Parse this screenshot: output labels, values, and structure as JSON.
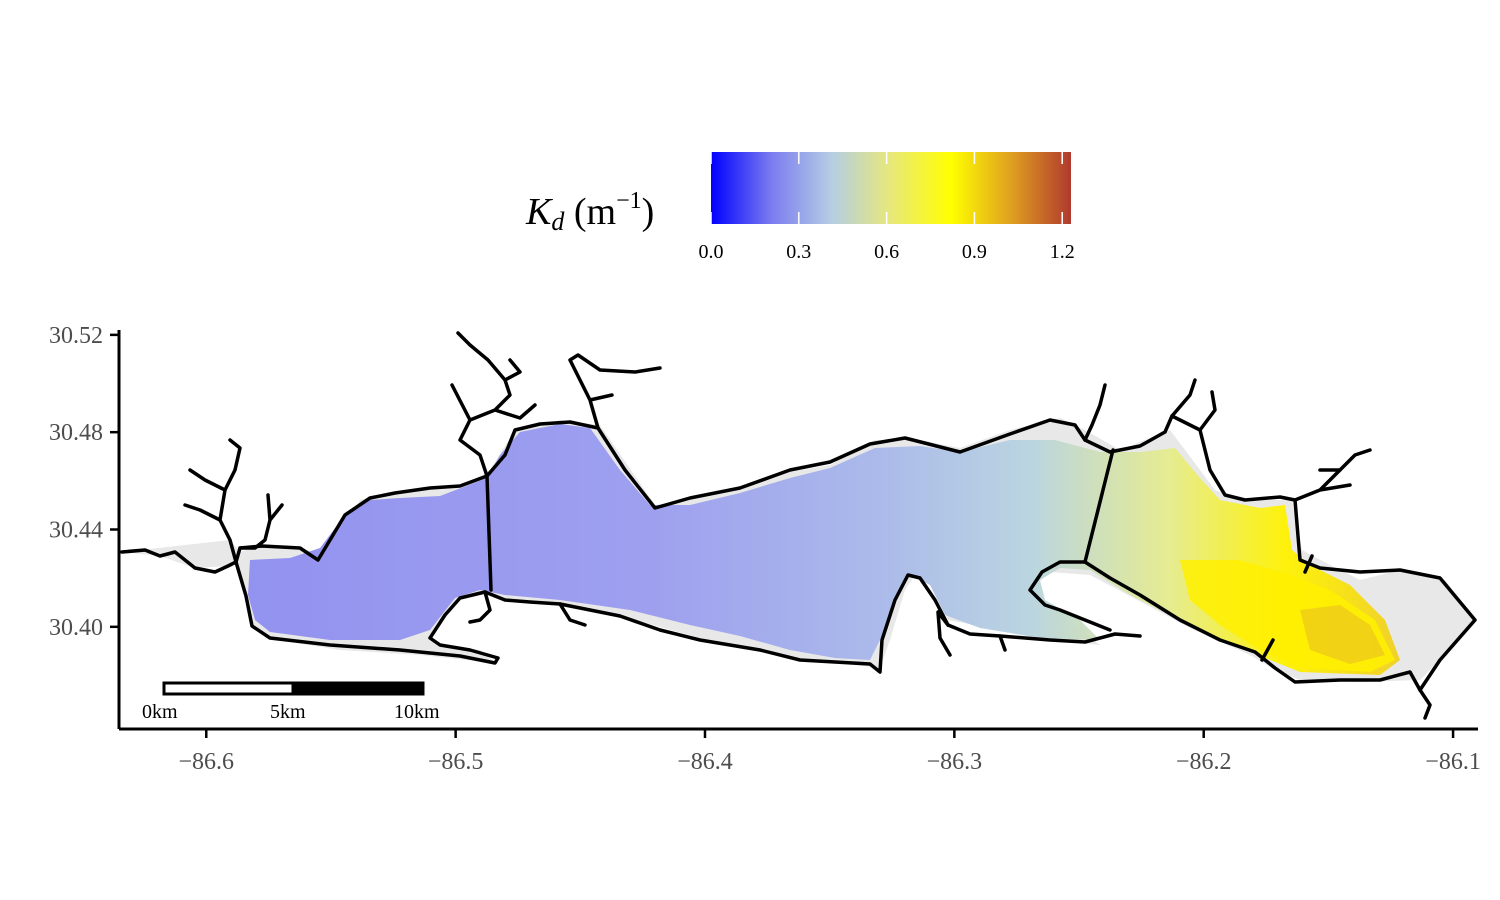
{
  "legend": {
    "title_symbol": "K",
    "title_subscript": "d",
    "title_units_open": " (m",
    "title_units_exp": "−1",
    "title_units_close": ")",
    "ticks": [
      "0.0",
      "0.3",
      "0.6",
      "0.9",
      "1.2"
    ],
    "tick_values": [
      0.0,
      0.3,
      0.6,
      0.9,
      1.2
    ],
    "range": [
      0,
      1.23
    ],
    "colors": [
      "#0000ff",
      "#7b7bf0",
      "#b4cde4",
      "#e8e87a",
      "#ffff00",
      "#e0a020",
      "#b03a2e"
    ]
  },
  "axes": {
    "x_ticks": [
      "−86.6",
      "−86.5",
      "−86.4",
      "−86.3",
      "−86.2",
      "−86.1"
    ],
    "x_tick_values": [
      -86.6,
      -86.5,
      -86.4,
      -86.3,
      -86.2,
      -86.1
    ],
    "y_ticks": [
      "30.52",
      "30.48",
      "30.44",
      "30.40"
    ],
    "y_tick_values": [
      30.52,
      30.48,
      30.44,
      30.4
    ],
    "xlim": [
      -86.635,
      -86.09
    ],
    "ylim": [
      30.358,
      30.522
    ]
  },
  "scale_bar": {
    "labels": [
      "0km",
      "5km",
      "10km"
    ]
  },
  "map": {
    "land_color": "#e8e8e8",
    "outline_color": "#000000"
  }
}
